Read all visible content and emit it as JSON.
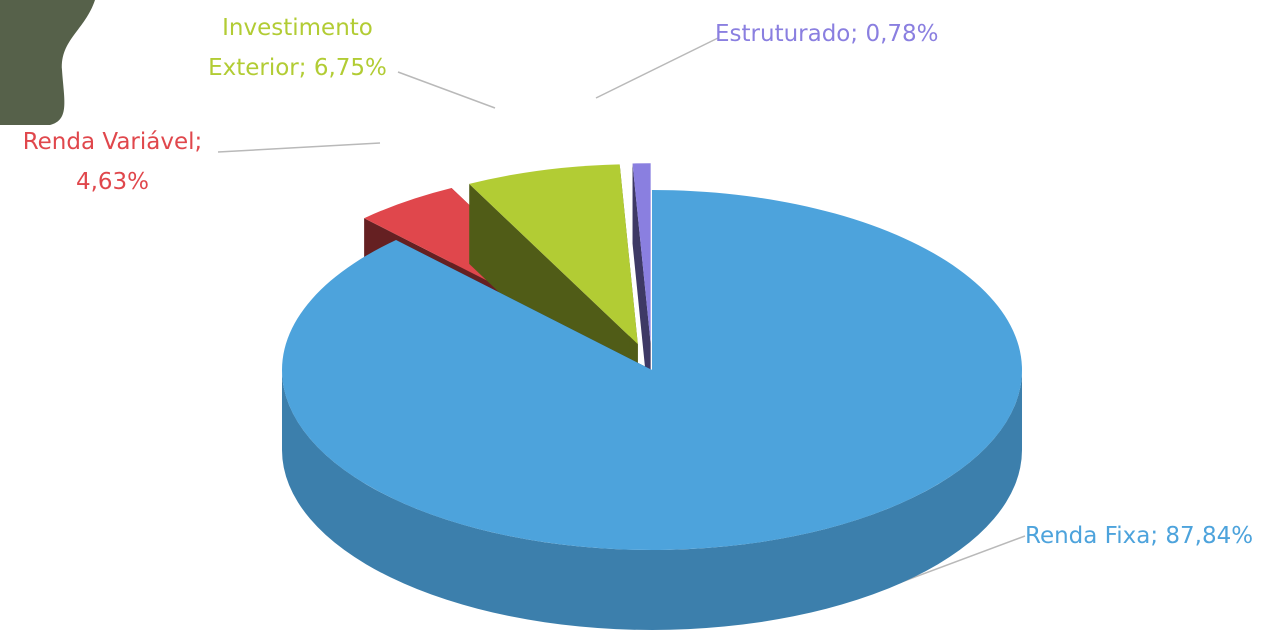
{
  "chart_data": {
    "type": "pie3d",
    "categories": [
      "Renda Fixa",
      "Renda Variável",
      "Investimento Exterior",
      "Estruturado"
    ],
    "values": [
      87.84,
      4.63,
      6.75,
      0.78
    ],
    "value_labels": [
      "87,84%",
      "4,63%",
      "6,75%",
      "0,78%"
    ],
    "separator": ";",
    "colors": [
      "#4da3dc",
      "#e0474c",
      "#b2cc34",
      "#8a7fe0"
    ]
  }
}
